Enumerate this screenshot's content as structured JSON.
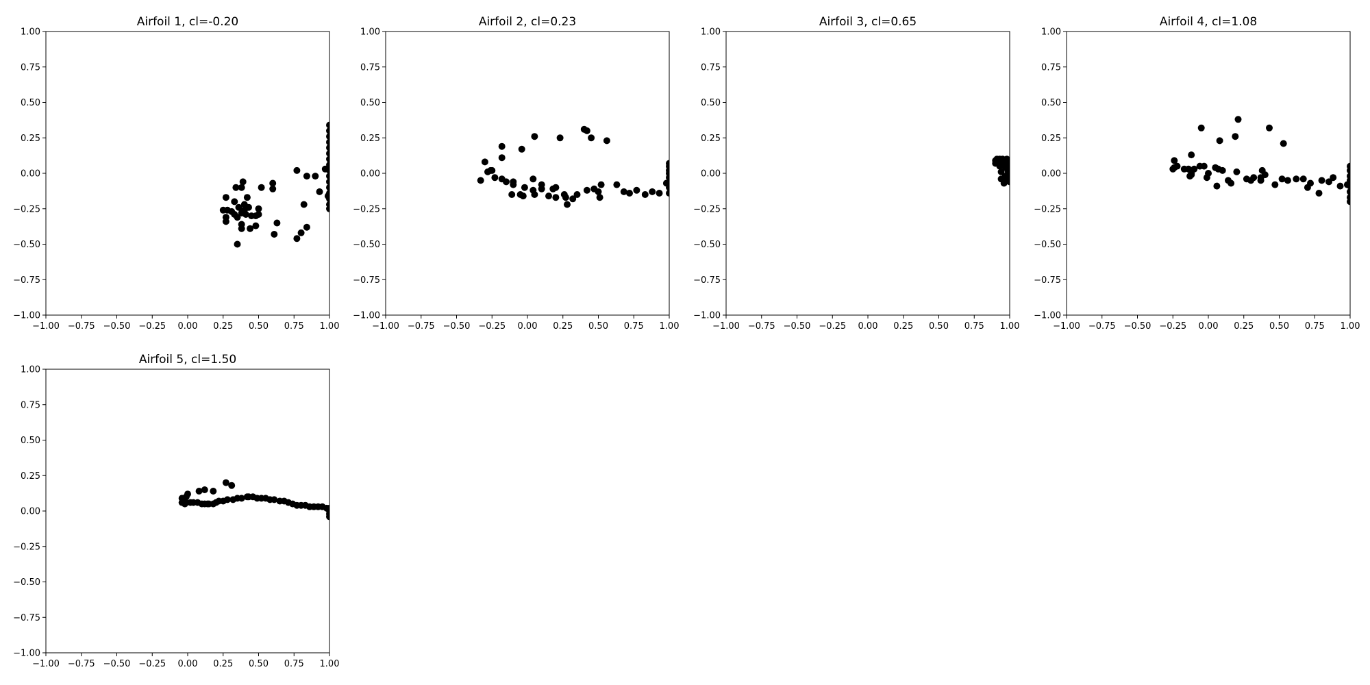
{
  "figure": {
    "background": "#ffffff",
    "point_color": "#000000"
  },
  "chart_data": [
    {
      "type": "scatter",
      "title": "Airfoil 1, cl=-0.20",
      "xlabel": "",
      "ylabel": "",
      "xlim": [
        -1.0,
        1.0
      ],
      "ylim": [
        -1.0,
        1.0
      ],
      "xticks": [
        "−1.00",
        "−0.75",
        "−0.50",
        "−0.25",
        "0.00",
        "0.25",
        "0.50",
        "0.75",
        "1.00"
      ],
      "yticks": [
        "−1.00",
        "−0.75",
        "−0.50",
        "−0.25",
        "0.00",
        "0.25",
        "0.50",
        "0.75",
        "1.00"
      ],
      "grid": false,
      "marker_color": "#000000",
      "points": [
        [
          1.0,
          0.34
        ],
        [
          1.0,
          0.3
        ],
        [
          1.0,
          0.26
        ],
        [
          1.0,
          0.22
        ],
        [
          1.0,
          0.18
        ],
        [
          1.0,
          0.14
        ],
        [
          1.0,
          0.1
        ],
        [
          1.0,
          0.06
        ],
        [
          1.0,
          0.02
        ],
        [
          1.0,
          -0.02
        ],
        [
          1.0,
          -0.06
        ],
        [
          1.0,
          -0.1
        ],
        [
          1.0,
          -0.14
        ],
        [
          1.0,
          -0.18
        ],
        [
          1.0,
          -0.22
        ],
        [
          1.0,
          -0.25
        ],
        [
          0.99,
          -0.16
        ],
        [
          0.97,
          0.03
        ],
        [
          0.93,
          -0.13
        ],
        [
          0.84,
          -0.02
        ],
        [
          0.84,
          -0.38
        ],
        [
          0.82,
          -0.22
        ],
        [
          0.8,
          -0.42
        ],
        [
          0.77,
          -0.46
        ],
        [
          0.77,
          0.02
        ],
        [
          0.63,
          -0.35
        ],
        [
          0.61,
          -0.43
        ],
        [
          0.6,
          -0.07
        ],
        [
          0.6,
          -0.11
        ],
        [
          0.52,
          -0.1
        ],
        [
          0.5,
          -0.25
        ],
        [
          0.5,
          -0.29
        ],
        [
          0.48,
          -0.3
        ],
        [
          0.48,
          -0.37
        ],
        [
          0.45,
          -0.3
        ],
        [
          0.44,
          -0.39
        ],
        [
          0.43,
          -0.24
        ],
        [
          0.42,
          -0.17
        ],
        [
          0.41,
          -0.29
        ],
        [
          0.4,
          -0.26
        ],
        [
          0.4,
          -0.22
        ],
        [
          0.39,
          -0.06
        ],
        [
          0.38,
          -0.1
        ],
        [
          0.38,
          -0.28
        ],
        [
          0.38,
          -0.36
        ],
        [
          0.38,
          -0.39
        ],
        [
          0.36,
          -0.24
        ],
        [
          0.35,
          -0.31
        ],
        [
          0.35,
          -0.5
        ],
        [
          0.34,
          -0.1
        ],
        [
          0.33,
          -0.2
        ],
        [
          0.33,
          -0.29
        ],
        [
          0.31,
          -0.27
        ],
        [
          0.28,
          -0.26
        ],
        [
          0.27,
          -0.17
        ],
        [
          0.27,
          -0.31
        ],
        [
          0.27,
          -0.34
        ],
        [
          0.25,
          -0.26
        ],
        [
          0.9,
          -0.02
        ]
      ]
    },
    {
      "type": "scatter",
      "title": "Airfoil 2, cl=0.23",
      "xlabel": "",
      "ylabel": "",
      "xlim": [
        -1.0,
        1.0
      ],
      "ylim": [
        -1.0,
        1.0
      ],
      "xticks": [
        "−1.00",
        "−0.75",
        "−0.50",
        "−0.25",
        "0.00",
        "0.25",
        "0.50",
        "0.75",
        "1.00"
      ],
      "yticks": [
        "−1.00",
        "−0.75",
        "−0.50",
        "−0.25",
        "0.00",
        "0.25",
        "0.50",
        "0.75",
        "1.00"
      ],
      "grid": false,
      "marker_color": "#000000",
      "points": [
        [
          1.0,
          0.07
        ],
        [
          1.0,
          0.05
        ],
        [
          1.0,
          0.02
        ],
        [
          1.0,
          0.0
        ],
        [
          1.0,
          -0.03
        ],
        [
          1.0,
          -0.06
        ],
        [
          1.0,
          -0.1
        ],
        [
          1.0,
          -0.14
        ],
        [
          0.98,
          -0.07
        ],
        [
          0.93,
          -0.14
        ],
        [
          0.88,
          -0.13
        ],
        [
          0.83,
          -0.15
        ],
        [
          0.77,
          -0.12
        ],
        [
          0.72,
          -0.14
        ],
        [
          0.68,
          -0.13
        ],
        [
          0.63,
          -0.08
        ],
        [
          0.56,
          0.23
        ],
        [
          0.52,
          -0.08
        ],
        [
          0.51,
          -0.17
        ],
        [
          0.5,
          -0.13
        ],
        [
          0.47,
          -0.11
        ],
        [
          0.45,
          0.25
        ],
        [
          0.42,
          0.3
        ],
        [
          0.4,
          0.31
        ],
        [
          0.42,
          -0.12
        ],
        [
          0.35,
          -0.15
        ],
        [
          0.32,
          -0.18
        ],
        [
          0.28,
          -0.22
        ],
        [
          0.27,
          -0.17
        ],
        [
          0.26,
          -0.15
        ],
        [
          0.23,
          0.25
        ],
        [
          0.2,
          -0.17
        ],
        [
          0.2,
          -0.1
        ],
        [
          0.18,
          -0.11
        ],
        [
          0.15,
          -0.16
        ],
        [
          0.1,
          -0.11
        ],
        [
          0.1,
          -0.08
        ],
        [
          0.05,
          -0.15
        ],
        [
          0.04,
          -0.12
        ],
        [
          0.04,
          -0.04
        ],
        [
          0.05,
          0.26
        ],
        [
          -0.02,
          -0.1
        ],
        [
          -0.03,
          -0.16
        ],
        [
          -0.04,
          0.17
        ],
        [
          -0.05,
          -0.15
        ],
        [
          -0.1,
          -0.08
        ],
        [
          -0.1,
          -0.06
        ],
        [
          -0.11,
          -0.15
        ],
        [
          -0.15,
          -0.06
        ],
        [
          -0.18,
          -0.04
        ],
        [
          -0.18,
          0.11
        ],
        [
          -0.18,
          0.19
        ],
        [
          -0.23,
          -0.03
        ],
        [
          -0.25,
          0.02
        ],
        [
          -0.26,
          0.02
        ],
        [
          -0.28,
          0.01
        ],
        [
          -0.3,
          0.08
        ],
        [
          -0.33,
          -0.05
        ]
      ]
    },
    {
      "type": "scatter",
      "title": "Airfoil 3, cl=0.65",
      "xlabel": "",
      "ylabel": "",
      "xlim": [
        -1.0,
        1.0
      ],
      "ylim": [
        -1.0,
        1.0
      ],
      "xticks": [
        "−1.00",
        "−0.75",
        "−0.50",
        "−0.25",
        "0.00",
        "0.25",
        "0.50",
        "0.75",
        "1.00"
      ],
      "yticks": [
        "−1.00",
        "−0.75",
        "−0.50",
        "−0.25",
        "0.00",
        "0.25",
        "0.50",
        "0.75",
        "1.00"
      ],
      "grid": false,
      "marker_color": "#000000",
      "points": [
        [
          1.0,
          0.09
        ],
        [
          1.0,
          0.06
        ],
        [
          1.0,
          0.03
        ],
        [
          1.0,
          0.0
        ],
        [
          1.0,
          -0.03
        ],
        [
          1.0,
          -0.06
        ],
        [
          0.98,
          0.1
        ],
        [
          0.97,
          0.08
        ],
        [
          0.97,
          0.04
        ],
        [
          0.97,
          -0.02
        ],
        [
          0.96,
          -0.05
        ],
        [
          0.96,
          -0.07
        ],
        [
          0.95,
          0.1
        ],
        [
          0.95,
          0.06
        ],
        [
          0.94,
          0.01
        ],
        [
          0.94,
          -0.04
        ],
        [
          0.93,
          0.1
        ],
        [
          0.93,
          0.05
        ],
        [
          0.92,
          0.08
        ],
        [
          0.91,
          0.1
        ],
        [
          0.9,
          0.09
        ],
        [
          0.9,
          0.07
        ],
        [
          0.98,
          -0.04
        ],
        [
          0.99,
          0.01
        ]
      ]
    },
    {
      "type": "scatter",
      "title": "Airfoil 4, cl=1.08",
      "xlabel": "",
      "ylabel": "",
      "xlim": [
        -1.0,
        1.0
      ],
      "ylim": [
        -1.0,
        1.0
      ],
      "xticks": [
        "−1.00",
        "−0.75",
        "−0.50",
        "−0.25",
        "0.00",
        "0.25",
        "0.50",
        "0.75",
        "1.00"
      ],
      "yticks": [
        "−1.00",
        "−0.75",
        "−0.50",
        "−0.25",
        "0.00",
        "0.25",
        "0.50",
        "0.75",
        "1.00"
      ],
      "grid": false,
      "marker_color": "#000000",
      "points": [
        [
          1.0,
          0.05
        ],
        [
          1.0,
          0.02
        ],
        [
          1.0,
          -0.02
        ],
        [
          1.0,
          -0.05
        ],
        [
          1.0,
          -0.09
        ],
        [
          1.0,
          -0.13
        ],
        [
          1.0,
          -0.17
        ],
        [
          1.0,
          -0.2
        ],
        [
          0.98,
          -0.08
        ],
        [
          0.93,
          -0.09
        ],
        [
          0.88,
          -0.03
        ],
        [
          0.85,
          -0.06
        ],
        [
          0.8,
          -0.05
        ],
        [
          0.78,
          -0.14
        ],
        [
          0.72,
          -0.07
        ],
        [
          0.7,
          -0.1
        ],
        [
          0.67,
          -0.04
        ],
        [
          0.62,
          -0.04
        ],
        [
          0.56,
          -0.05
        ],
        [
          0.53,
          0.21
        ],
        [
          0.52,
          -0.04
        ],
        [
          0.47,
          -0.08
        ],
        [
          0.43,
          0.32
        ],
        [
          0.4,
          -0.01
        ],
        [
          0.38,
          0.02
        ],
        [
          0.37,
          -0.03
        ],
        [
          0.37,
          -0.05
        ],
        [
          0.32,
          -0.03
        ],
        [
          0.3,
          -0.05
        ],
        [
          0.27,
          -0.04
        ],
        [
          0.2,
          0.01
        ],
        [
          0.21,
          0.38
        ],
        [
          0.19,
          0.26
        ],
        [
          0.16,
          -0.07
        ],
        [
          0.14,
          -0.05
        ],
        [
          0.1,
          0.02
        ],
        [
          0.08,
          0.23
        ],
        [
          0.07,
          0.03
        ],
        [
          0.06,
          -0.09
        ],
        [
          0.05,
          0.04
        ],
        [
          0.0,
          0.0
        ],
        [
          -0.01,
          -0.03
        ],
        [
          -0.03,
          0.05
        ],
        [
          -0.05,
          0.32
        ],
        [
          -0.06,
          0.05
        ],
        [
          -0.1,
          0.03
        ],
        [
          -0.12,
          0.0
        ],
        [
          -0.12,
          -0.01
        ],
        [
          -0.12,
          0.13
        ],
        [
          -0.13,
          -0.02
        ],
        [
          -0.14,
          0.03
        ],
        [
          -0.17,
          0.03
        ],
        [
          -0.22,
          0.05
        ],
        [
          -0.24,
          0.04
        ],
        [
          -0.25,
          0.03
        ],
        [
          -0.24,
          0.09
        ]
      ]
    },
    {
      "type": "scatter",
      "title": "Airfoil 5, cl=1.50",
      "xlabel": "",
      "ylabel": "",
      "xlim": [
        -1.0,
        1.0
      ],
      "ylim": [
        -1.0,
        1.0
      ],
      "xticks": [
        "−1.00",
        "−0.75",
        "−0.50",
        "−0.25",
        "0.00",
        "0.25",
        "0.50",
        "0.75",
        "1.00"
      ],
      "yticks": [
        "−1.00",
        "−0.75",
        "−0.50",
        "−0.25",
        "0.00",
        "0.25",
        "0.50",
        "0.75",
        "1.00"
      ],
      "grid": false,
      "marker_color": "#000000",
      "points": [
        [
          1.0,
          0.02
        ],
        [
          1.0,
          0.0
        ],
        [
          1.0,
          -0.02
        ],
        [
          1.0,
          -0.04
        ],
        [
          0.98,
          0.02
        ],
        [
          0.95,
          0.03
        ],
        [
          0.92,
          0.03
        ],
        [
          0.89,
          0.03
        ],
        [
          0.86,
          0.03
        ],
        [
          0.83,
          0.04
        ],
        [
          0.8,
          0.04
        ],
        [
          0.77,
          0.04
        ],
        [
          0.74,
          0.05
        ],
        [
          0.71,
          0.06
        ],
        [
          0.68,
          0.07
        ],
        [
          0.65,
          0.07
        ],
        [
          0.58,
          0.08
        ],
        [
          0.55,
          0.09
        ],
        [
          0.52,
          0.09
        ],
        [
          0.49,
          0.09
        ],
        [
          0.46,
          0.1
        ],
        [
          0.43,
          0.1
        ],
        [
          0.42,
          0.1
        ],
        [
          0.38,
          0.09
        ],
        [
          0.35,
          0.09
        ],
        [
          0.32,
          0.08
        ],
        [
          0.31,
          0.18
        ],
        [
          0.28,
          0.08
        ],
        [
          0.27,
          0.2
        ],
        [
          0.25,
          0.07
        ],
        [
          0.22,
          0.07
        ],
        [
          0.2,
          0.06
        ],
        [
          0.18,
          0.05
        ],
        [
          0.18,
          0.14
        ],
        [
          0.15,
          0.05
        ],
        [
          0.12,
          0.05
        ],
        [
          0.12,
          0.15
        ],
        [
          0.1,
          0.05
        ],
        [
          0.08,
          0.14
        ],
        [
          0.07,
          0.06
        ],
        [
          0.04,
          0.06
        ],
        [
          0.02,
          0.06
        ],
        [
          0.0,
          0.12
        ],
        [
          -0.01,
          0.1
        ],
        [
          -0.02,
          0.07
        ],
        [
          -0.02,
          0.05
        ],
        [
          -0.04,
          0.09
        ],
        [
          -0.04,
          0.06
        ],
        [
          0.61,
          0.08
        ],
        [
          0.14,
          0.05
        ]
      ]
    }
  ]
}
